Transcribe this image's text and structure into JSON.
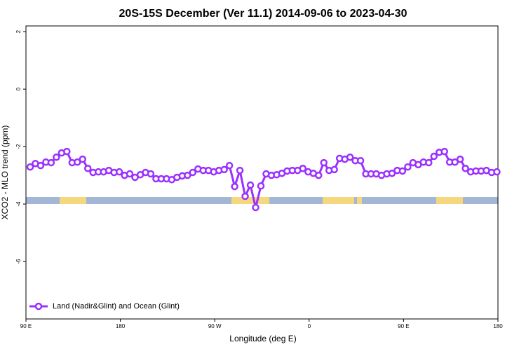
{
  "chart_data": {
    "type": "line",
    "title": "20S-15S December (Ver 11.1)   2014-09-06 to 2023-04-30",
    "x_label": "Longitude (deg E)",
    "y_label": "XCO2 - MLO trend (ppm)",
    "x": [
      94,
      99,
      104,
      109,
      114,
      119,
      124,
      129,
      134,
      139,
      144,
      149,
      154,
      159,
      164,
      169,
      174,
      179,
      184,
      189,
      194,
      199,
      204,
      209,
      214,
      219,
      224,
      229,
      234,
      239,
      244,
      249,
      254,
      259,
      264,
      269,
      274,
      279,
      284,
      289,
      294,
      299,
      304,
      309,
      314,
      319,
      324,
      329,
      334,
      339,
      344,
      349,
      354,
      359,
      364,
      369,
      374,
      379,
      384,
      389,
      394,
      399,
      404,
      409,
      414,
      419,
      424,
      429,
      434,
      439,
      444,
      449,
      454,
      459,
      464,
      469,
      474,
      479,
      484,
      489,
      494,
      499,
      504,
      509,
      514,
      519,
      524,
      529,
      534,
      539
    ],
    "series": [
      {
        "name": "Land (Nadir&Glint) and Ocean (Glint)",
        "color": "#9b30ff",
        "values": [
          -2.71,
          -2.59,
          -2.66,
          -2.54,
          -2.56,
          -2.37,
          -2.22,
          -2.17,
          -2.56,
          -2.54,
          -2.44,
          -2.76,
          -2.9,
          -2.88,
          -2.88,
          -2.83,
          -2.9,
          -2.88,
          -3.0,
          -2.95,
          -3.07,
          -2.98,
          -2.9,
          -2.95,
          -3.12,
          -3.12,
          -3.12,
          -3.15,
          -3.07,
          -3.02,
          -3.0,
          -2.9,
          -2.78,
          -2.83,
          -2.83,
          -2.88,
          -2.83,
          -2.8,
          -2.66,
          -3.39,
          -2.83,
          -3.73,
          -3.34,
          -4.12,
          -3.37,
          -2.95,
          -3.0,
          -2.98,
          -2.93,
          -2.85,
          -2.83,
          -2.83,
          -2.76,
          -2.88,
          -2.93,
          -3.0,
          -2.56,
          -2.83,
          -2.8,
          -2.41,
          -2.44,
          -2.37,
          -2.49,
          -2.49,
          -2.95,
          -2.95,
          -2.95,
          -3.0,
          -2.95,
          -2.93,
          -2.83,
          -2.85,
          -2.71,
          -2.56,
          -2.63,
          -2.54,
          -2.56,
          -2.34,
          -2.2,
          -2.17,
          -2.54,
          -2.54,
          -2.44,
          -2.76,
          -2.88,
          -2.85,
          -2.85,
          -2.83,
          -2.9,
          -2.88
        ]
      }
    ],
    "xlim": [
      90,
      540
    ],
    "xticks": [
      {
        "value": 90,
        "label": "90 E"
      },
      180,
      {
        "value": 270,
        "label": "90 W"
      },
      {
        "value": 360,
        "label": "0"
      },
      {
        "value": 450,
        "label": "90 E"
      },
      180
    ],
    "ylim": [
      -8,
      2.2
    ],
    "yticks": [
      2,
      0,
      -2,
      -4,
      -6
    ],
    "legend": "bottom-left"
  }
}
